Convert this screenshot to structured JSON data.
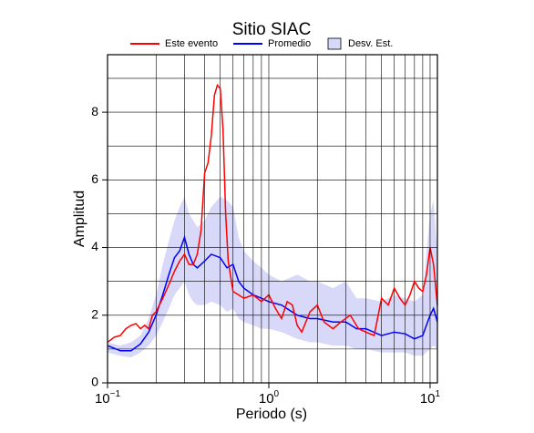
{
  "chart_data": {
    "type": "line",
    "title": "Sitio SIAC",
    "x_label": "Periodo (s)",
    "y_label": "Amplitud",
    "xscale": "log",
    "xlim": [
      0.1,
      11.1
    ],
    "ylim": [
      0,
      9.7
    ],
    "xticks": [
      {
        "value": 0.1,
        "label": "10",
        "exponent": "−1"
      },
      {
        "value": 1,
        "label": "10",
        "exponent": "0"
      },
      {
        "value": 10,
        "label": "10",
        "exponent": "1"
      }
    ],
    "xgrid": [
      0.2,
      0.3,
      0.4,
      0.5,
      0.6,
      0.7,
      0.8,
      0.9,
      2,
      3,
      4,
      5,
      6,
      7,
      8,
      9
    ],
    "yticks": [
      0,
      2,
      4,
      6,
      8
    ],
    "ygrid": [
      1,
      2,
      3,
      4,
      5,
      6,
      7,
      8,
      9
    ],
    "grid": true,
    "legend": "top",
    "series": [
      {
        "name": "Este evento",
        "color": "#ff0000",
        "kind": "line",
        "x": [
          0.1,
          0.11,
          0.12,
          0.13,
          0.14,
          0.15,
          0.16,
          0.17,
          0.18,
          0.19,
          0.2,
          0.22,
          0.24,
          0.26,
          0.28,
          0.3,
          0.32,
          0.34,
          0.36,
          0.38,
          0.4,
          0.42,
          0.44,
          0.46,
          0.48,
          0.5,
          0.52,
          0.54,
          0.56,
          0.6,
          0.65,
          0.7,
          0.8,
          0.9,
          1.0,
          1.1,
          1.2,
          1.3,
          1.4,
          1.5,
          1.6,
          1.8,
          2.0,
          2.2,
          2.5,
          2.8,
          3.2,
          3.6,
          4.0,
          4.5,
          5.0,
          5.5,
          6.0,
          6.5,
          7.0,
          7.5,
          8.0,
          8.5,
          9.0,
          9.5,
          10,
          10.5,
          11.1
        ],
        "values": [
          1.2,
          1.35,
          1.4,
          1.6,
          1.7,
          1.75,
          1.6,
          1.7,
          1.6,
          2.0,
          2.1,
          2.5,
          2.9,
          3.3,
          3.6,
          3.8,
          3.5,
          3.5,
          3.8,
          4.5,
          6.2,
          6.5,
          7.3,
          8.5,
          8.8,
          8.7,
          7.5,
          5.0,
          3.6,
          2.7,
          2.6,
          2.5,
          2.6,
          2.4,
          2.6,
          2.2,
          1.9,
          2.4,
          2.3,
          1.7,
          1.5,
          2.1,
          2.3,
          1.8,
          1.6,
          1.8,
          2.0,
          1.6,
          1.5,
          1.4,
          2.5,
          2.3,
          2.8,
          2.5,
          2.3,
          2.6,
          3.0,
          2.8,
          2.7,
          3.2,
          4.0,
          3.5,
          2.3
        ]
      },
      {
        "name": "Promedio",
        "color": "#0000ff",
        "kind": "line",
        "x": [
          0.1,
          0.12,
          0.14,
          0.16,
          0.18,
          0.2,
          0.22,
          0.24,
          0.26,
          0.28,
          0.3,
          0.32,
          0.34,
          0.36,
          0.4,
          0.44,
          0.5,
          0.55,
          0.6,
          0.65,
          0.7,
          0.8,
          0.9,
          1.0,
          1.2,
          1.5,
          1.8,
          2.0,
          2.5,
          3.0,
          3.5,
          4.0,
          5.0,
          6.0,
          7.0,
          8.0,
          9.0,
          10,
          10.5,
          11.1
        ],
        "values": [
          1.1,
          0.95,
          0.95,
          1.15,
          1.5,
          2.0,
          2.6,
          3.2,
          3.7,
          3.9,
          4.3,
          3.8,
          3.5,
          3.4,
          3.6,
          3.8,
          3.7,
          3.4,
          3.5,
          3.0,
          2.8,
          2.6,
          2.5,
          2.4,
          2.3,
          2.0,
          1.9,
          1.9,
          1.8,
          1.8,
          1.6,
          1.6,
          1.4,
          1.5,
          1.45,
          1.3,
          1.4,
          2.0,
          2.2,
          1.8
        ]
      },
      {
        "name": "Desv. Est.",
        "color": "#d8d8f8",
        "kind": "band",
        "x": [
          0.1,
          0.12,
          0.14,
          0.16,
          0.18,
          0.2,
          0.22,
          0.24,
          0.26,
          0.28,
          0.3,
          0.32,
          0.34,
          0.36,
          0.4,
          0.44,
          0.5,
          0.55,
          0.6,
          0.65,
          0.7,
          0.8,
          0.9,
          1.0,
          1.2,
          1.5,
          1.8,
          2.0,
          2.5,
          3.0,
          3.5,
          4.0,
          5.0,
          6.0,
          7.0,
          8.0,
          9.0,
          10,
          10.5,
          11.1
        ],
        "upper": [
          1.2,
          1.1,
          1.2,
          1.4,
          1.9,
          2.6,
          3.5,
          4.2,
          4.8,
          5.2,
          5.5,
          5.0,
          4.8,
          4.6,
          4.8,
          5.2,
          5.5,
          5.4,
          5.2,
          4.3,
          3.9,
          3.6,
          3.4,
          3.2,
          3.0,
          3.2,
          3.0,
          3.0,
          2.8,
          3.0,
          2.5,
          2.5,
          2.4,
          2.6,
          2.5,
          2.4,
          2.6,
          5.0,
          5.4,
          3.8
        ],
        "lower": [
          0.9,
          0.8,
          0.75,
          0.9,
          1.1,
          1.4,
          1.8,
          2.2,
          2.6,
          2.8,
          3.0,
          2.6,
          2.4,
          2.3,
          2.3,
          2.4,
          2.3,
          2.1,
          2.2,
          1.9,
          1.8,
          1.7,
          1.6,
          1.6,
          1.5,
          1.3,
          1.2,
          1.2,
          1.1,
          1.1,
          1.0,
          1.0,
          0.9,
          0.9,
          0.9,
          0.8,
          0.8,
          1.0,
          1.1,
          1.0
        ]
      }
    ]
  }
}
